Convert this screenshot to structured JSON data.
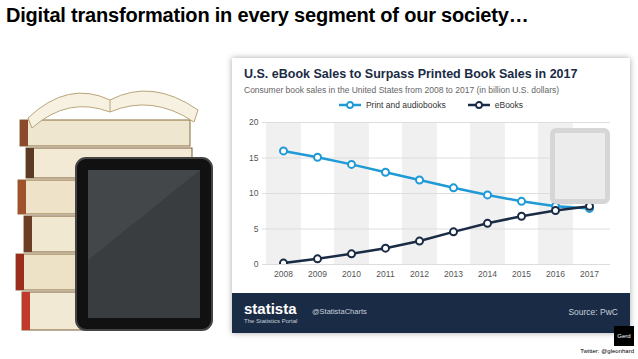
{
  "slide": {
    "heading": "Digital transformation in every segment of our society…",
    "credit": "Twitter: @gleonhard",
    "logo": "Gerd"
  },
  "chart_data": {
    "type": "line",
    "title": "U.S. eBook Sales to Surpass Printed Book Sales in 2017",
    "subtitle": "Consumer book sales in the United States from 2008 to 2017 (in billion U.S. dollars)",
    "categories": [
      "2008",
      "2009",
      "2010",
      "2011",
      "2012",
      "2013",
      "2014",
      "2015",
      "2016",
      "2017"
    ],
    "series": [
      {
        "name": "Print and audiobooks",
        "color": "#1f9ad6",
        "values": [
          16.0,
          15.1,
          14.1,
          13.0,
          11.9,
          10.8,
          9.8,
          8.9,
          8.2,
          7.9
        ]
      },
      {
        "name": "eBooks",
        "color": "#1a2b45",
        "values": [
          0.2,
          0.8,
          1.5,
          2.3,
          3.3,
          4.6,
          5.8,
          6.8,
          7.6,
          8.2
        ]
      }
    ],
    "ylim": [
      0,
      20
    ],
    "yticks": [
      0,
      5,
      10,
      15,
      20
    ],
    "grid": true,
    "legend": "top",
    "marker": "circle",
    "brand": "statista",
    "brand_subtitle": "The Statistics Portal",
    "handle": "@StatistaCharts",
    "source": "Source: PwC"
  }
}
